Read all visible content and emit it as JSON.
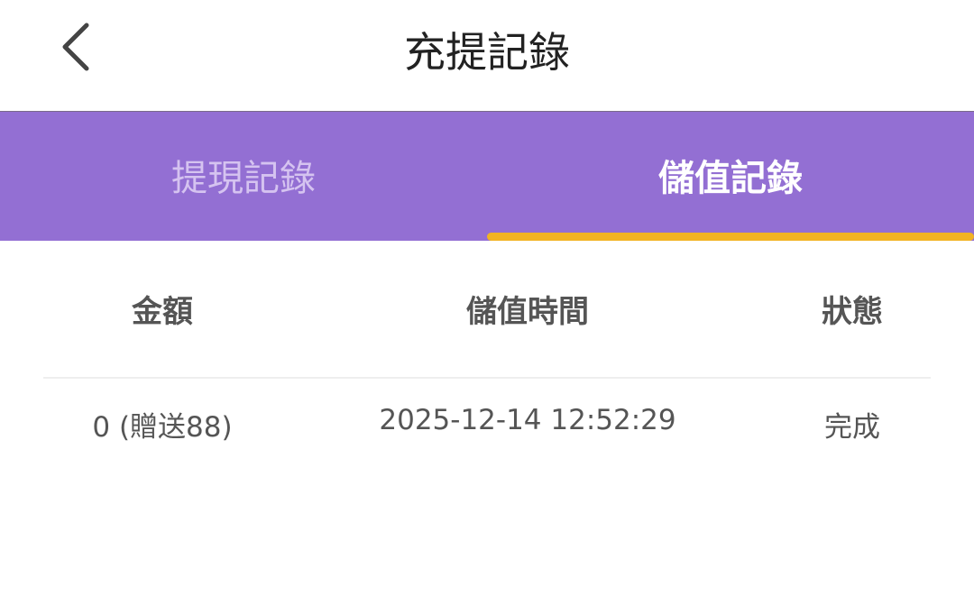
{
  "header": {
    "title": "充提記錄",
    "back_icon": "chevron-left-icon"
  },
  "tabs": [
    {
      "label": "提現記錄",
      "active": false
    },
    {
      "label": "儲值記錄",
      "active": true
    }
  ],
  "colors": {
    "tab_bar": "#936fd3",
    "indicator": "#f2b323"
  },
  "table": {
    "columns": [
      "金額",
      "儲值時間",
      "狀態"
    ],
    "rows": [
      [
        "0 (贈送88)",
        "2025-12-14 12:52:29",
        "完成"
      ]
    ]
  }
}
